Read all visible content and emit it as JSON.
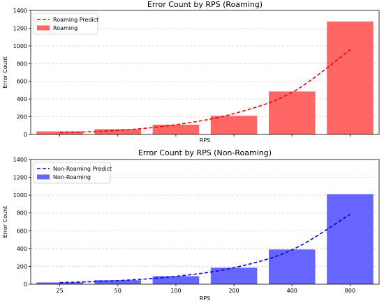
{
  "chart_data": [
    {
      "type": "bar",
      "title": "Error Count by RPS (Roaming)",
      "xlabel": "RPS",
      "ylabel": "Error Count",
      "categories": [
        "25",
        "50",
        "100",
        "200",
        "400",
        "800"
      ],
      "show_xtick_labels": false,
      "ylim": [
        0,
        1400
      ],
      "yticks": [
        0,
        200,
        400,
        600,
        800,
        1000,
        1200,
        1400
      ],
      "grid": "y-dashed",
      "legend_position": "top-left",
      "series": [
        {
          "name": "Roaming Predict",
          "kind": "line-dashed",
          "color": "#ff0000",
          "values": [
            20,
            45,
            110,
            235,
            475,
            955
          ]
        },
        {
          "name": "Roaming",
          "kind": "bar",
          "color": "#ff6666",
          "values": [
            35,
            60,
            110,
            210,
            485,
            1275
          ]
        }
      ]
    },
    {
      "type": "bar",
      "title": "Error Count by RPS (Non-Roaming)",
      "xlabel": "RPS",
      "ylabel": "Error Count",
      "categories": [
        "25",
        "50",
        "100",
        "200",
        "400",
        "800"
      ],
      "show_xtick_labels": true,
      "ylim": [
        0,
        1400
      ],
      "yticks": [
        0,
        200,
        400,
        600,
        800,
        1000,
        1200,
        1400
      ],
      "grid": "y-dashed",
      "legend_position": "top-left",
      "series": [
        {
          "name": "Non-Roaming Predict",
          "kind": "line-dashed",
          "color": "#0000dd",
          "values": [
            18,
            40,
            88,
            185,
            385,
            785
          ]
        },
        {
          "name": "Non-Roaming",
          "kind": "bar",
          "color": "#6666ff",
          "values": [
            20,
            45,
            90,
            185,
            390,
            1010
          ]
        }
      ]
    }
  ]
}
